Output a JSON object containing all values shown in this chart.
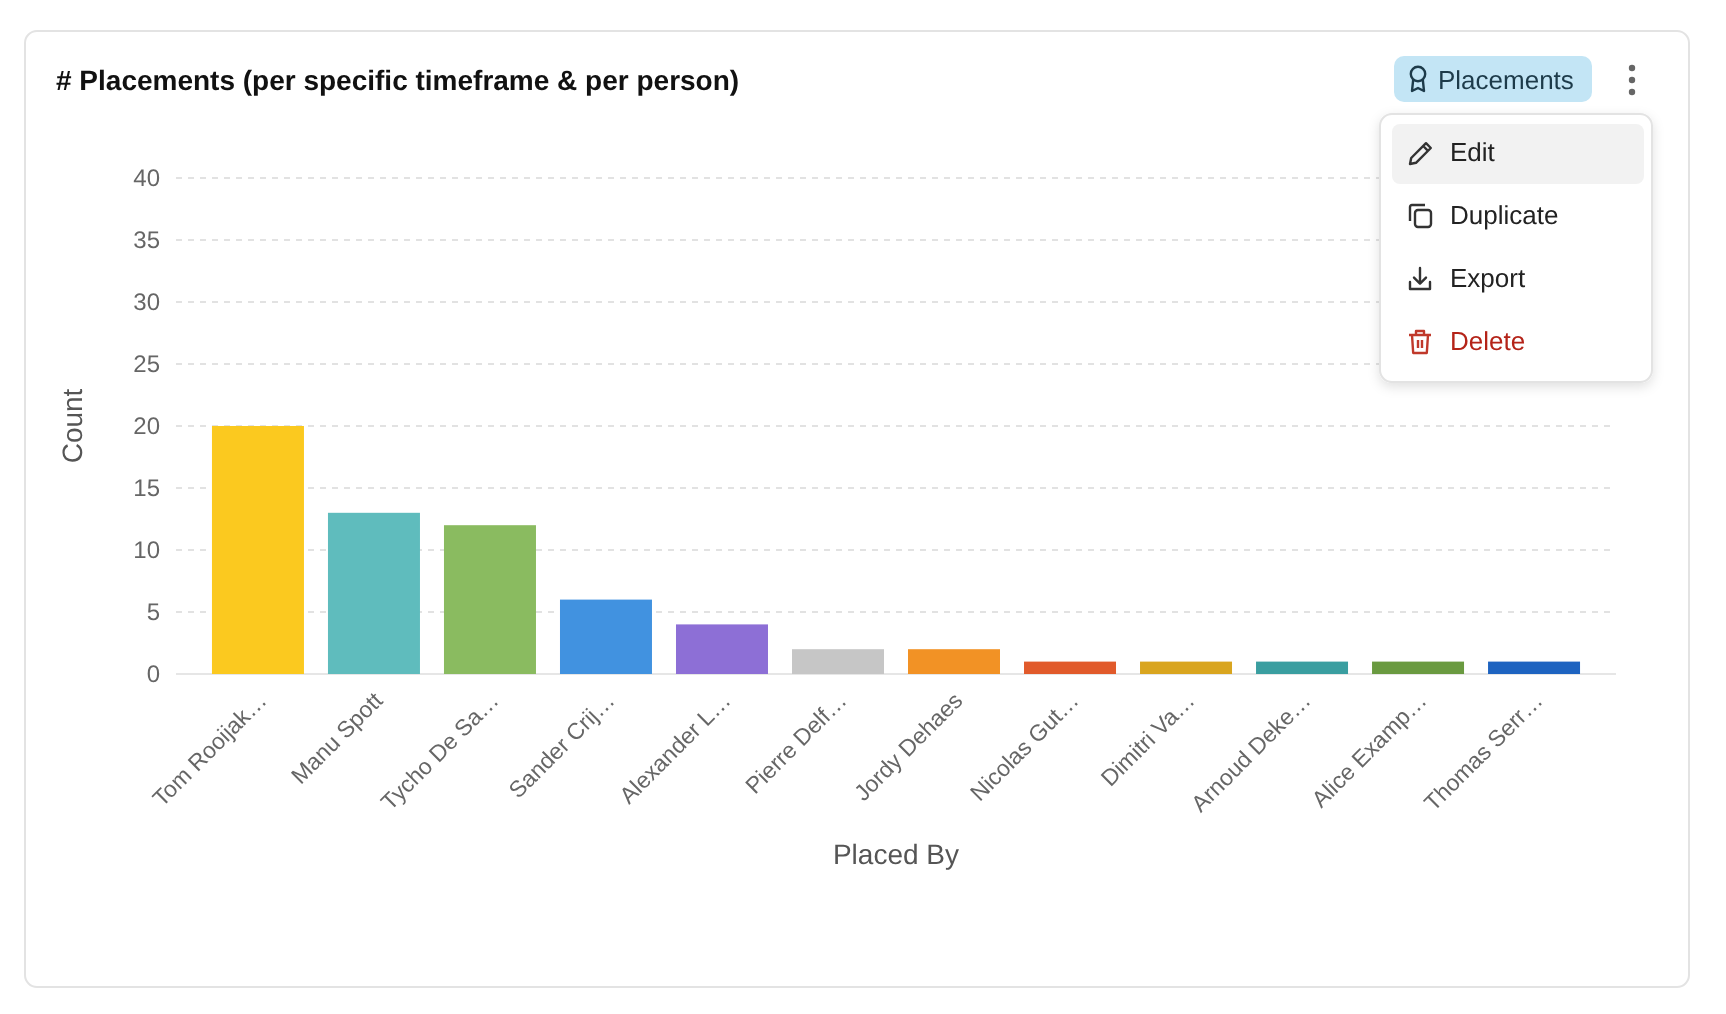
{
  "chart_data": {
    "type": "bar",
    "title": "# Placements (per specific timeframe & per person)",
    "xlabel": "Placed By",
    "ylabel": "Count",
    "categories": [
      "Tom Rooijak…",
      "Manu Spott",
      "Tycho De Sa…",
      "Sander Crij…",
      "Alexander L…",
      "Pierre Delf…",
      "Jordy Dehaes",
      "Nicolas Gut…",
      "Dimitri Va…",
      "Arnoud Deke…",
      "Alice Examp…",
      "Thomas Serr…"
    ],
    "values": [
      20,
      13,
      12,
      6,
      4,
      2,
      2,
      1,
      1,
      1,
      1,
      1
    ],
    "colors": [
      "#fbc91f",
      "#5fbcbd",
      "#8abb60",
      "#4192e0",
      "#8d6fd6",
      "#c6c6c6",
      "#f29225",
      "#e15a2b",
      "#d9a51f",
      "#3a9ea0",
      "#6a9a40",
      "#1e63c0"
    ],
    "ylim": [
      0,
      40
    ],
    "yticks": [
      0,
      5,
      10,
      15,
      20,
      25,
      30,
      35,
      40
    ],
    "grid": "y",
    "annotations": [
      "Placements",
      "Edit",
      "Duplicate",
      "Export",
      "Delete"
    ]
  }
}
